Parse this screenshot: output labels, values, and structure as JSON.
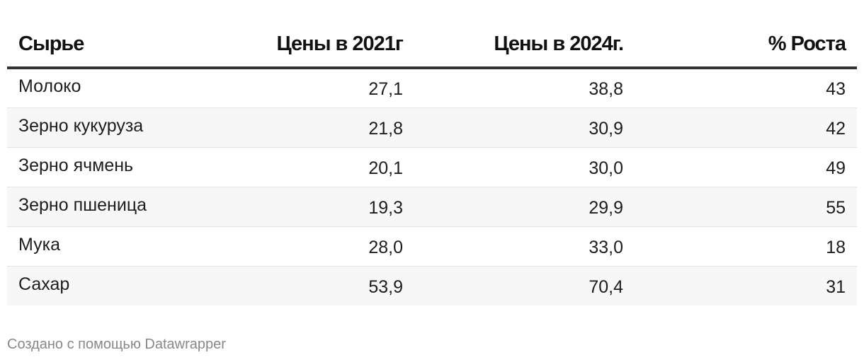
{
  "chart_data": {
    "type": "table",
    "columns": [
      "Сырье",
      "Цены в 2021г",
      "Цены в 2024г.",
      "% Роста"
    ],
    "rows": [
      [
        "Молоко",
        "27,1",
        "38,8",
        "43"
      ],
      [
        "Зерно кукуруза",
        "21,8",
        "30,9",
        "42"
      ],
      [
        "Зерно ячмень",
        "20,1",
        "30,0",
        "49"
      ],
      [
        "Зерно пшеница",
        "19,3",
        "29,9",
        "55"
      ],
      [
        "Мука",
        "28,0",
        "33,0",
        "18"
      ],
      [
        "Сахар",
        "53,9",
        "70,4",
        "31"
      ]
    ]
  },
  "footer": {
    "credit": "Создано с помощью Datawrapper"
  }
}
